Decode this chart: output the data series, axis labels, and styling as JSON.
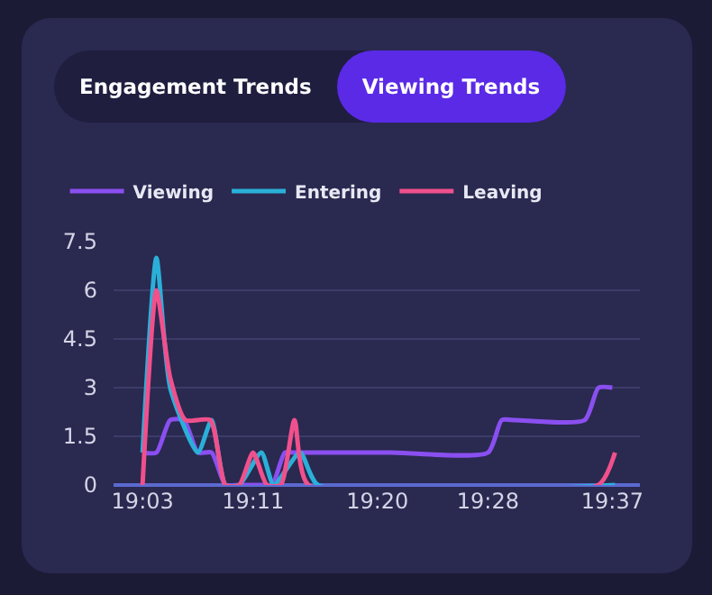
{
  "chart_data": {
    "type": "line",
    "annotations": [
      "Engagement Trends",
      "Viewing Trends"
    ],
    "series": [
      {
        "name": "Viewing",
        "color": "#8a4ff0",
        "x": [
          19.05,
          19.0667,
          19.0833,
          19.1,
          19.1167,
          19.1333,
          19.15,
          19.1667,
          19.1833,
          19.2,
          19.2067,
          19.2217,
          19.2333,
          19.35,
          19.4667,
          19.4833,
          19.5,
          19.5833,
          19.6,
          19.6167
        ],
        "values": [
          1,
          1,
          2,
          2,
          1,
          1,
          0,
          0,
          0,
          0,
          0,
          1,
          1,
          1,
          1,
          2,
          2,
          2,
          3,
          3
        ]
      },
      {
        "name": "Entering",
        "color": "#2ab0d8",
        "x": [
          19.05,
          19.0667,
          19.0833,
          19.1167,
          19.1333,
          19.15,
          19.1667,
          19.1933,
          19.2083,
          19.24,
          19.2617,
          19.62
        ],
        "values": [
          1,
          7,
          3,
          1,
          2,
          0,
          0,
          1,
          0,
          1,
          0,
          0
        ]
      },
      {
        "name": "Leaving",
        "color": "#f0508c",
        "x": [
          19.05,
          19.0667,
          19.0833,
          19.1017,
          19.1317,
          19.15,
          19.1667,
          19.1833,
          19.2,
          19.2167,
          19.2333,
          19.25,
          19.6,
          19.62
        ],
        "values": [
          0,
          6,
          3.3,
          2,
          2,
          0,
          0,
          1,
          0,
          0,
          2,
          0,
          0,
          1
        ]
      }
    ],
    "xlim": [
      19.015,
      19.65
    ],
    "xticks": [
      {
        "value": 19.05,
        "label": "19:03"
      },
      {
        "value": 19.1833,
        "label": "19:11"
      },
      {
        "value": 19.3333,
        "label": "19:20"
      },
      {
        "value": 19.4667,
        "label": "19:28"
      },
      {
        "value": 19.6167,
        "label": "19:37"
      }
    ],
    "ylim": [
      0,
      7.5
    ],
    "yticks": [
      0,
      1.5,
      3,
      4.5,
      6,
      7.5
    ],
    "grid": "y",
    "legend": "top left"
  }
}
